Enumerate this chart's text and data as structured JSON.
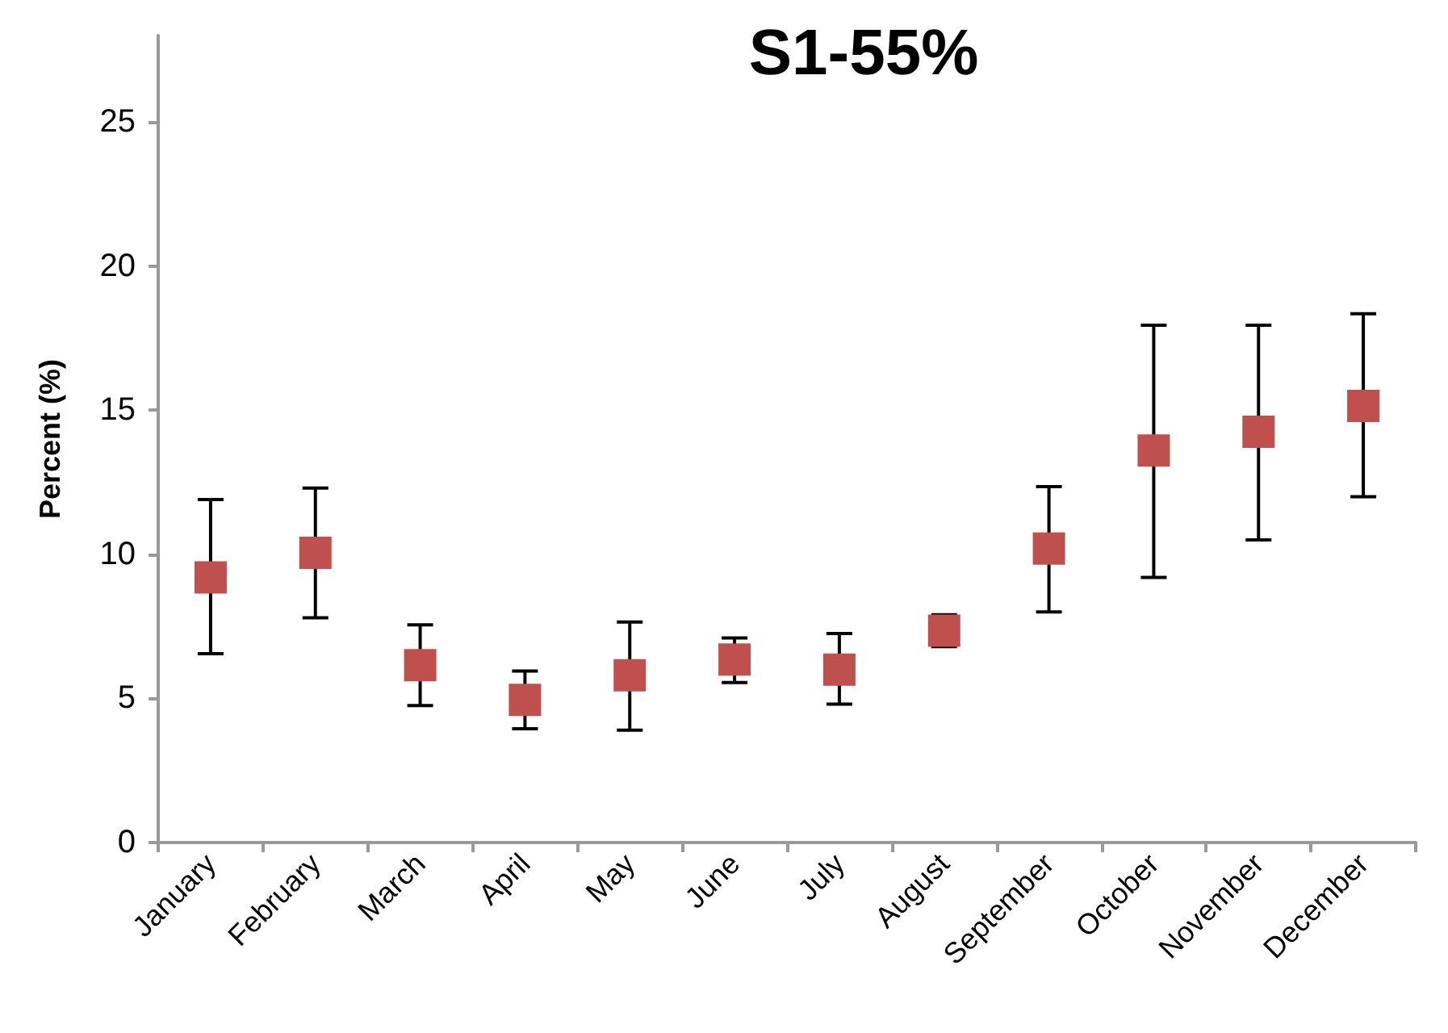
{
  "chart_data": {
    "type": "scatter",
    "title": "S1-55%",
    "ylabel": "Percent (%)",
    "categories": [
      "January",
      "February",
      "March",
      "April",
      "May",
      "June",
      "July",
      "August",
      "September",
      "October",
      "November",
      "December"
    ],
    "series": [
      {
        "color": "#c0504d",
        "values": [
          9.2,
          10.05,
          6.15,
          4.95,
          5.8,
          6.35,
          6.0,
          7.35,
          10.2,
          13.6,
          14.25,
          15.15
        ],
        "errors": [
          [
            6.55,
            11.9
          ],
          [
            7.8,
            12.3
          ],
          [
            4.75,
            7.55
          ],
          [
            3.95,
            5.95
          ],
          [
            3.9,
            7.65
          ],
          [
            5.55,
            7.1
          ],
          [
            4.8,
            7.25
          ],
          [
            6.8,
            7.9
          ],
          [
            8.0,
            12.35
          ],
          [
            9.2,
            17.95
          ],
          [
            10.5,
            17.95
          ],
          [
            12.0,
            18.35
          ]
        ]
      }
    ],
    "ylim": [
      0,
      28
    ],
    "yticks": [
      0,
      5,
      10,
      15,
      20,
      25
    ],
    "grid": false,
    "marker": "square"
  }
}
